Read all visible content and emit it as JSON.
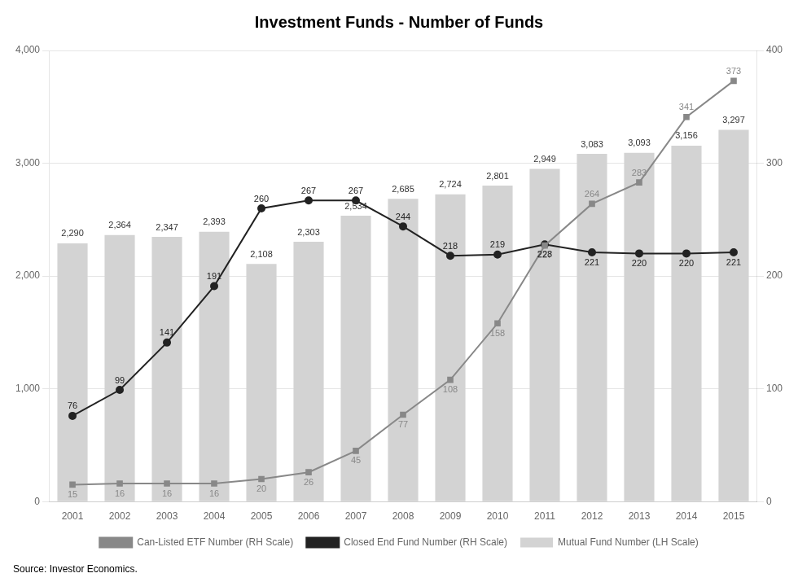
{
  "chart_data": {
    "type": "bar",
    "title": "Investment Funds - Number of Funds",
    "categories": [
      "2001",
      "2002",
      "2003",
      "2004",
      "2005",
      "2006",
      "2007",
      "2008",
      "2009",
      "2010",
      "2011",
      "2012",
      "2013",
      "2014",
      "2015"
    ],
    "series": [
      {
        "name": "Mutual Fund Number (LH Scale)",
        "type": "bar",
        "color": "#d3d3d3",
        "values": [
          2290,
          2364,
          2347,
          2393,
          2108,
          2303,
          2534,
          2685,
          2724,
          2801,
          2949,
          3083,
          3093,
          3156,
          3297
        ],
        "value_labels": [
          "2,290",
          "2,364",
          "2,347",
          "2,393",
          "2,108",
          "2,303",
          "2,534",
          "2,685",
          "2,724",
          "2,801",
          "2,949",
          "3,083",
          "3,093",
          "3,156",
          "3,297"
        ]
      },
      {
        "name": "Can-Listed ETF Number (RH Scale)",
        "type": "line",
        "axis": "y2",
        "color": "#888888",
        "marker": "square",
        "values": [
          15,
          16,
          16,
          16,
          20,
          26,
          45,
          77,
          108,
          158,
          227,
          264,
          283,
          341,
          373
        ]
      },
      {
        "name": "Closed End Fund Number (RH Scale)",
        "type": "line",
        "axis": "y2",
        "color": "#222222",
        "marker": "circle",
        "values": [
          76,
          99,
          141,
          191,
          260,
          267,
          267,
          244,
          218,
          219,
          228,
          221,
          220,
          220,
          221
        ]
      }
    ],
    "ylim": [
      0,
      4000
    ],
    "yticks": [
      0,
      {
        "value": 1000,
        "label": "1,000"
      },
      {
        "value": 2000,
        "label": "2,000"
      },
      {
        "value": 3000,
        "label": "3,000"
      },
      {
        "value": 4000,
        "label": "4,000"
      }
    ],
    "y2lim": [
      0,
      400
    ],
    "y2ticks": [
      0,
      100,
      200,
      300,
      400
    ],
    "grid": true,
    "legend": "bottom",
    "data_labels": true,
    "annotations": [
      "Source: Investor Economics."
    ]
  }
}
